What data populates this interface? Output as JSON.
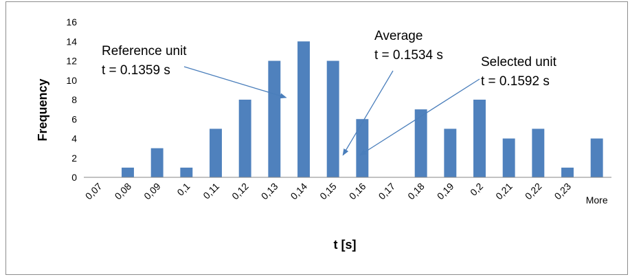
{
  "chart_data": {
    "type": "bar",
    "categories": [
      "0,07",
      "0,08",
      "0,09",
      "0,1",
      "0,11",
      "0,12",
      "0,13",
      "0,14",
      "0,15",
      "0,16",
      "0,17",
      "0,18",
      "0,19",
      "0,2",
      "0,21",
      "0,22",
      "0,23",
      "More"
    ],
    "values": [
      0,
      1,
      3,
      1,
      5,
      8,
      12,
      14,
      12,
      6,
      0,
      7,
      5,
      8,
      4,
      5,
      1,
      4
    ],
    "xlabel": "t [s]",
    "ylabel": "Frequency",
    "ylim": [
      0,
      16
    ],
    "yticks": [
      0,
      2,
      4,
      6,
      8,
      10,
      12,
      14,
      16
    ],
    "bar_color": "#4f81bd",
    "grid": false,
    "legend": "none",
    "annotations": [
      {
        "id": "reference",
        "lines": [
          "Reference unit",
          "t = 0.1359 s"
        ],
        "x": 0.1359,
        "y": 8
      },
      {
        "id": "average",
        "lines": [
          "Average",
          "t = 0.1534 s"
        ],
        "x": 0.1534,
        "y": 2
      },
      {
        "id": "selected",
        "lines": [
          "Selected unit",
          "t = 0.1592 s"
        ],
        "x": 0.1592,
        "y": 2
      }
    ]
  }
}
